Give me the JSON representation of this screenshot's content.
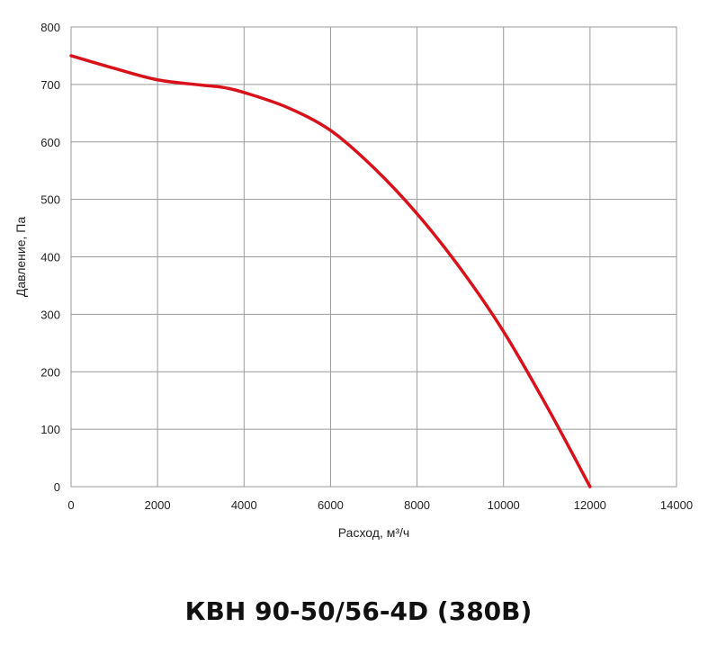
{
  "chart_data": {
    "type": "line",
    "title": "КВН 90-50/56-4D (380В)",
    "xlabel": "Расход, м³/ч",
    "ylabel": "Давление, Па",
    "xlim": [
      0,
      14000
    ],
    "ylim": [
      0,
      800
    ],
    "xticks": [
      0,
      2000,
      4000,
      6000,
      8000,
      10000,
      12000,
      14000
    ],
    "yticks": [
      0,
      100,
      200,
      300,
      400,
      500,
      600,
      700,
      800
    ],
    "grid": true,
    "colors": {
      "curve": "#d8111b",
      "grid": "#9a9a9a",
      "frame": "#9a9a9a"
    },
    "series": [
      {
        "x": [
          0,
          1000,
          2000,
          3000,
          3500,
          4000,
          5000,
          6000,
          7000,
          8000,
          9000,
          10000,
          11000,
          12000
        ],
        "y": [
          750,
          728,
          708,
          699,
          695,
          686,
          660,
          620,
          555,
          475,
          380,
          270,
          140,
          0
        ]
      }
    ]
  }
}
